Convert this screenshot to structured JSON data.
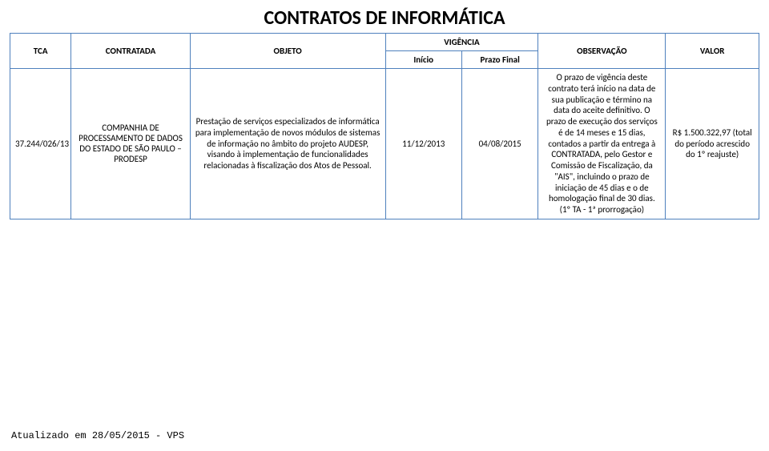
{
  "title": "CONTRATOS DE INFORMÁTICA",
  "headers": {
    "tca": "TCA",
    "contratada": "CONTRATADA",
    "objeto": "OBJETO",
    "vigencia": "VIGÊNCIA",
    "inicio": "Início",
    "prazo": "Prazo Final",
    "observacao": "OBSERVAÇÃO",
    "valor": "VALOR"
  },
  "row": {
    "tca": "37.244/026/13",
    "contratada": "COMPANHIA DE PROCESSAMENTO DE DADOS DO ESTADO DE SÃO PAULO – PRODESP",
    "objeto": "Prestação de serviços especializados de informática para implementação de novos módulos de sistemas de informação no âmbito do projeto AUDESP, visando à implementação de funcionalidades relacionadas à fiscalização dos Atos de Pessoal.",
    "inicio": "11/12/2013",
    "prazo": "04/08/2015",
    "observacao": "O prazo de vigência deste contrato terá início na data de sua publicação e término na data do aceite definitivo. O prazo de execução dos serviços é de 14 meses e 15 dias, contados a partir da entrega à CONTRATADA, pelo Gestor e Comissão de Fiscalização, da \"AIS\", incluindo o prazo de iniciação de 45 dias e o de homologação final de 30 dias. (1º TA - 1ª prorrogação)",
    "valor": "R$ 1.500.322,97 (total do período acrescido do 1º reajuste)"
  },
  "footer": "Atualizado em 28/05/2015 - VPS",
  "colors": {
    "border": "#4f81bd",
    "text": "#000000",
    "background": "#ffffff"
  }
}
